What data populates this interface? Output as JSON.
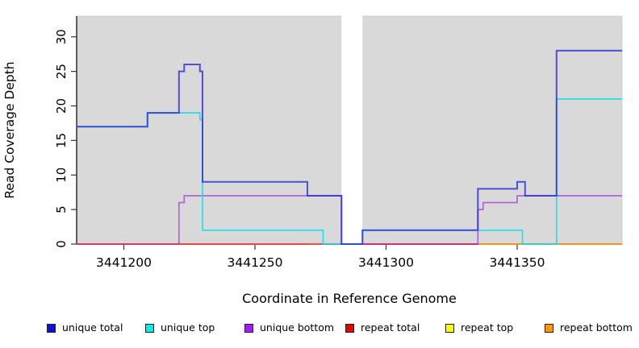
{
  "chart_data": {
    "type": "line",
    "step_interpolation": true,
    "title": "",
    "xlabel": "Coordinate in Reference Genome",
    "ylabel": "Read Coverage Depth",
    "xlim": [
      3441182,
      3441390
    ],
    "ylim": [
      0,
      33
    ],
    "x_ticks": [
      3441200,
      3441250,
      3441300,
      3441350
    ],
    "y_ticks": [
      0,
      5,
      10,
      15,
      20,
      25,
      30
    ],
    "grid": false,
    "legend_position": "bottom",
    "plot_background": "#d9d9d9",
    "missing_data_gap": {
      "from": 3441283,
      "to": 3441291,
      "color": "#ffffff"
    },
    "draw_order": [
      4,
      5,
      2,
      3,
      1,
      0
    ],
    "series": [
      {
        "name": "unique total",
        "legend_color": "#0f0fe0",
        "stroke": "rgba(42,42,215,0.8)",
        "width": 2,
        "segments": [
          [
            [
              3441182,
              17
            ],
            [
              3441209,
              19
            ],
            [
              3441221,
              25
            ],
            [
              3441223,
              26
            ],
            [
              3441229,
              25
            ],
            [
              3441230,
              9
            ],
            [
              3441270,
              7
            ],
            [
              3441283,
              0
            ],
            [
              3441291,
              2
            ],
            [
              3441335,
              8
            ],
            [
              3441350,
              9
            ],
            [
              3441353,
              7
            ],
            [
              3441365,
              28
            ],
            [
              3441390,
              28
            ]
          ]
        ]
      },
      {
        "name": "unique top",
        "legend_color": "#00eeee",
        "stroke": "rgba(0,225,235,0.85)",
        "width": 1.7,
        "segments": [
          [
            [
              3441182,
              17
            ],
            [
              3441209,
              19
            ],
            [
              3441229,
              18
            ],
            [
              3441230,
              2
            ],
            [
              3441276,
              0
            ],
            [
              3441291,
              2
            ],
            [
              3441352,
              0
            ],
            [
              3441365,
              21
            ],
            [
              3441390,
              21
            ]
          ]
        ]
      },
      {
        "name": "unique bottom",
        "legend_color": "#a020f0",
        "stroke": "rgba(162,70,220,0.8)",
        "width": 1.7,
        "segments": [
          [
            [
              3441182,
              0
            ],
            [
              3441221,
              6
            ],
            [
              3441223,
              7
            ],
            [
              3441283,
              0
            ],
            [
              3441335,
              5
            ],
            [
              3441337,
              6
            ],
            [
              3441350,
              7
            ],
            [
              3441390,
              7
            ]
          ]
        ]
      },
      {
        "name": "repeat total",
        "legend_color": "#ee0000",
        "stroke": "rgba(228,30,80,0.8)",
        "width": 1.7,
        "segments": [
          [
            [
              3441182,
              0
            ],
            [
              3441283,
              0
            ]
          ],
          [
            [
              3441291,
              0
            ],
            [
              3441335,
              0
            ]
          ]
        ]
      },
      {
        "name": "repeat top",
        "legend_color": "#ffff00",
        "stroke": "rgba(235,235,0,0.9)",
        "width": 1.7,
        "segments": [
          [
            [
              3441182,
              0
            ],
            [
              3441291,
              0
            ]
          ]
        ]
      },
      {
        "name": "repeat bottom",
        "legend_color": "#ff9900",
        "stroke": "rgba(255,148,10,0.95)",
        "width": 1.8,
        "segments": [
          [
            [
              3441222,
              0
            ],
            [
              3441270,
              0
            ]
          ],
          [
            [
              3441335,
              0
            ],
            [
              3441390,
              0
            ]
          ]
        ]
      }
    ]
  }
}
